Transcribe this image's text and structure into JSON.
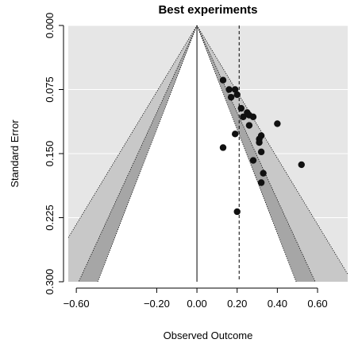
{
  "chart_data": {
    "type": "scatter",
    "subtype": "funnel-plot",
    "title": "Best experiments",
    "xlabel": "Observed Outcome",
    "ylabel": "Standard Error",
    "xlim": [
      -0.64,
      0.75
    ],
    "ylim": [
      0.0,
      0.3
    ],
    "y_reversed": true,
    "reference_line": 0.21,
    "funnel_apex_x": 0.0,
    "x_ticks": [
      {
        "value": -0.6,
        "label": "−0.60"
      },
      {
        "value": -0.2,
        "label": "−0.20"
      },
      {
        "value": 0.0,
        "label": "0.00"
      },
      {
        "value": 0.2,
        "label": "0.20"
      },
      {
        "value": 0.4,
        "label": "0.40"
      },
      {
        "value": 0.6,
        "label": "0.60"
      }
    ],
    "y_ticks": [
      {
        "value": 0.0,
        "label": "0.000"
      },
      {
        "value": 0.075,
        "label": "0.075"
      },
      {
        "value": 0.15,
        "label": "0.150"
      },
      {
        "value": 0.225,
        "label": "0.225"
      },
      {
        "value": 0.3,
        "label": "0.300"
      }
    ],
    "contours": [
      {
        "level": 0.1,
        "z": 1.645,
        "color": "#ffffff"
      },
      {
        "level": 0.05,
        "z": 1.96,
        "color": "#a6a6a6"
      },
      {
        "level": 0.01,
        "z": 2.576,
        "color": "#c8c8c8"
      }
    ],
    "outer_color": "#e6e6e6",
    "points": [
      {
        "x": 0.13,
        "y": 0.064
      },
      {
        "x": 0.16,
        "y": 0.075
      },
      {
        "x": 0.17,
        "y": 0.084
      },
      {
        "x": 0.19,
        "y": 0.075
      },
      {
        "x": 0.2,
        "y": 0.081
      },
      {
        "x": 0.22,
        "y": 0.097
      },
      {
        "x": 0.23,
        "y": 0.107
      },
      {
        "x": 0.25,
        "y": 0.102
      },
      {
        "x": 0.26,
        "y": 0.105
      },
      {
        "x": 0.28,
        "y": 0.107
      },
      {
        "x": 0.26,
        "y": 0.117
      },
      {
        "x": 0.19,
        "y": 0.127
      },
      {
        "x": 0.13,
        "y": 0.143
      },
      {
        "x": 0.31,
        "y": 0.133
      },
      {
        "x": 0.32,
        "y": 0.129
      },
      {
        "x": 0.31,
        "y": 0.137
      },
      {
        "x": 0.4,
        "y": 0.115
      },
      {
        "x": 0.32,
        "y": 0.148
      },
      {
        "x": 0.28,
        "y": 0.158
      },
      {
        "x": 0.52,
        "y": 0.163
      },
      {
        "x": 0.33,
        "y": 0.173
      },
      {
        "x": 0.32,
        "y": 0.184
      },
      {
        "x": 0.2,
        "y": 0.218
      }
    ]
  }
}
